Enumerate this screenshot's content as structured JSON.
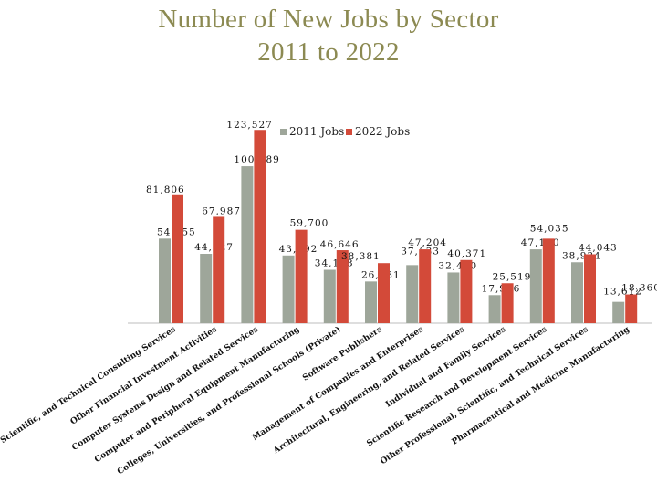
{
  "title": [
    "Number of New Jobs by Sector",
    "2011 to 2022"
  ],
  "colors": {
    "title": "#8c8a52",
    "series_2011": "#9ea69a",
    "series_2022": "#d34a39"
  },
  "chart_data": {
    "type": "bar",
    "title": "Number of New Jobs by Sector 2011 to 2022",
    "xlabel": "",
    "ylabel": "",
    "ylim": [
      0,
      130000
    ],
    "grid": false,
    "legend": "top",
    "categories": [
      "Management, Scientific, and Technical Consulting Services",
      "Other Financial Investment Activities",
      "Computer Systems Design and Related Services",
      "Computer and Peripheral Equipment Manufacturing",
      "Colleges, Universities, and Professional Schools (Private)",
      "Software Publishers",
      "Management of Companies and Enterprises",
      "Architectural, Engineering, and Related Services",
      "Individual and Family Services",
      "Scientific Research and Development Services",
      "Other Professional, Scientific, and Technical Services",
      "Pharmaceutical and Medicine Manufacturing"
    ],
    "series": [
      {
        "name": "2011 Jobs",
        "values": [
          54055,
          44327,
          100289,
          43292,
          34118,
          26631,
          37133,
          32400,
          17916,
          47190,
          38934,
          13612
        ]
      },
      {
        "name": "2022 Jobs",
        "values": [
          81806,
          67987,
          123527,
          59700,
          46646,
          38381,
          47204,
          40371,
          25519,
          54035,
          44043,
          18360
        ]
      }
    ],
    "value_labels": [
      [
        "54,055",
        "44,327",
        "100,289",
        "43,292",
        "34,118",
        "26,631",
        "37,133",
        "32,400",
        "17,916",
        "47,190",
        "38,934",
        "13,612"
      ],
      [
        "81,806",
        "67,987",
        "123,527",
        "59,700",
        "46,646",
        "38,381",
        "47,204",
        "40,371",
        "25,519",
        "54,035",
        "44,043",
        "18,360"
      ]
    ]
  }
}
